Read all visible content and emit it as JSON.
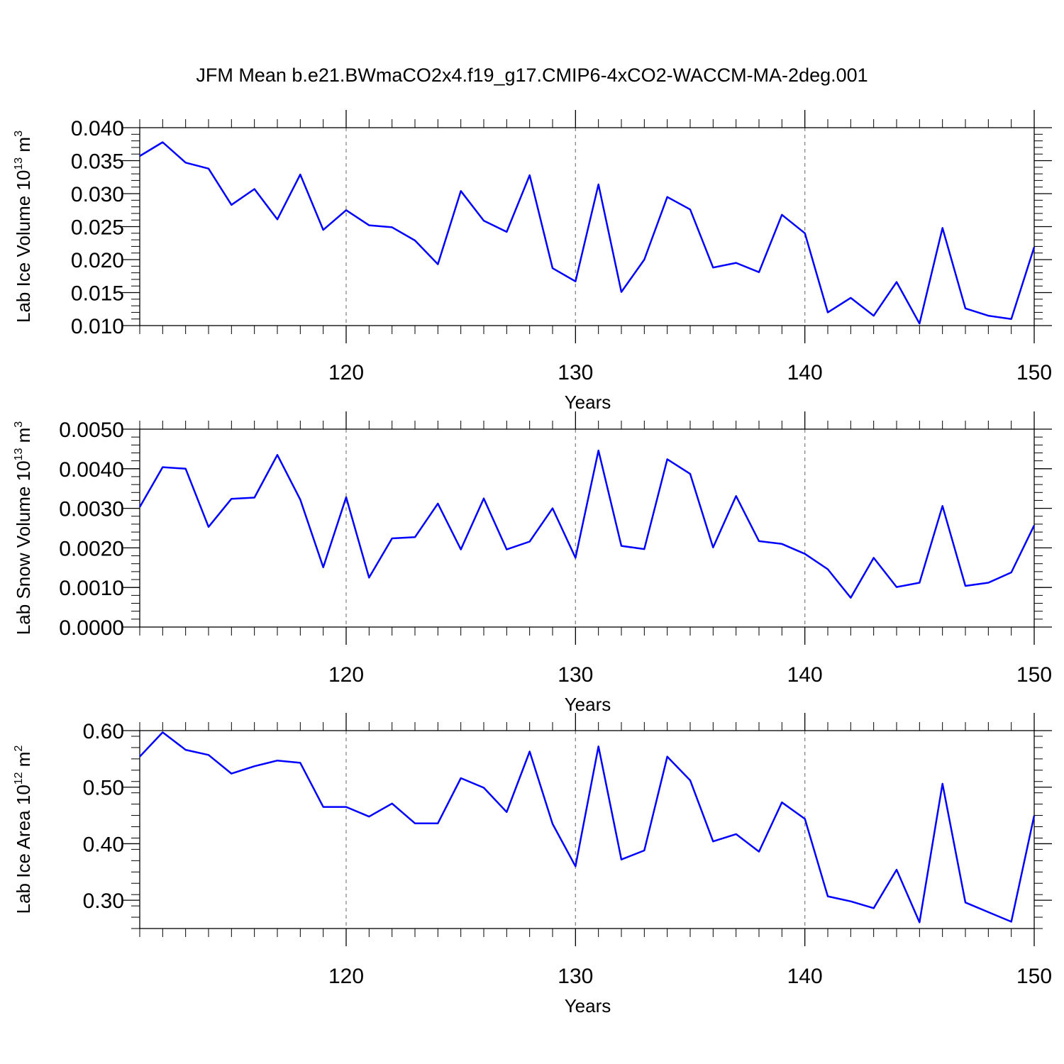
{
  "title": "JFM Mean b.e21.BWmaCO2x4.f19_g17.CMIP6-4xCO2-WACCM-MA-2deg.001",
  "chart_data": [
    {
      "type": "line",
      "xlabel": "Years",
      "ylabel": {
        "base": "Lab Ice Volume 10",
        "exp": "13",
        "unit": " m",
        "unit_exp": "3"
      },
      "xlim": [
        111,
        150
      ],
      "ylim": [
        0.01,
        0.04
      ],
      "xticks": [
        120,
        130,
        140,
        150
      ],
      "xtick_labels": [
        "120",
        "130",
        "140",
        "150"
      ],
      "yticks": [
        0.01,
        0.015,
        0.02,
        0.025,
        0.03,
        0.035,
        0.04
      ],
      "ytick_labels": [
        "0.010",
        "0.015",
        "0.020",
        "0.025",
        "0.030",
        "0.035",
        "0.040"
      ],
      "vgrid": [
        120,
        130,
        140
      ],
      "series": [
        {
          "color": "#0000ff",
          "x": [
            111,
            112,
            113,
            114,
            115,
            116,
            117,
            118,
            119,
            120,
            121,
            122,
            123,
            124,
            125,
            126,
            127,
            128,
            129,
            130,
            131,
            132,
            133,
            134,
            135,
            136,
            137,
            138,
            139,
            140,
            141,
            142,
            143,
            144,
            145,
            146,
            147,
            148,
            149,
            150
          ],
          "y": [
            0.0357,
            0.0378,
            0.0347,
            0.0338,
            0.0283,
            0.0307,
            0.0261,
            0.0329,
            0.0245,
            0.0275,
            0.0252,
            0.0249,
            0.0229,
            0.0193,
            0.0304,
            0.0259,
            0.0242,
            0.0328,
            0.0187,
            0.0167,
            0.0314,
            0.0151,
            0.02,
            0.0295,
            0.0276,
            0.0188,
            0.0195,
            0.0181,
            0.0268,
            0.024,
            0.012,
            0.0142,
            0.0115,
            0.0166,
            0.0103,
            0.0248,
            0.0126,
            0.0115,
            0.011,
            0.0219
          ]
        }
      ]
    },
    {
      "type": "line",
      "xlabel": "Years",
      "ylabel": {
        "base": "Lab Snow Volume 10",
        "exp": "13",
        "unit": " m",
        "unit_exp": "3"
      },
      "xlim": [
        111,
        150
      ],
      "ylim": [
        0.0,
        0.005
      ],
      "xticks": [
        120,
        130,
        140,
        150
      ],
      "xtick_labels": [
        "120",
        "130",
        "140",
        "150"
      ],
      "yticks": [
        0.0,
        0.001,
        0.002,
        0.003,
        0.004,
        0.005
      ],
      "ytick_labels": [
        "0.0000",
        "0.0010",
        "0.0020",
        "0.0030",
        "0.0040",
        "0.0050"
      ],
      "vgrid": [
        120,
        130,
        140
      ],
      "series": [
        {
          "color": "#0000ff",
          "x": [
            111,
            112,
            113,
            114,
            115,
            116,
            117,
            118,
            119,
            120,
            121,
            122,
            123,
            124,
            125,
            126,
            127,
            128,
            129,
            130,
            131,
            132,
            133,
            134,
            135,
            136,
            137,
            138,
            139,
            140,
            141,
            142,
            143,
            144,
            145,
            146,
            147,
            148,
            149,
            150
          ],
          "y": [
            0.00303,
            0.00404,
            0.004,
            0.00253,
            0.00324,
            0.00327,
            0.00435,
            0.00322,
            0.00151,
            0.00328,
            0.00125,
            0.00224,
            0.00227,
            0.00312,
            0.00196,
            0.00325,
            0.00196,
            0.00216,
            0.003,
            0.00175,
            0.00446,
            0.00205,
            0.00197,
            0.00424,
            0.00387,
            0.00201,
            0.00331,
            0.00217,
            0.0021,
            0.00185,
            0.00146,
            0.00074,
            0.00175,
            0.00101,
            0.00112,
            0.00306,
            0.00104,
            0.00112,
            0.00138,
            0.00257
          ]
        }
      ]
    },
    {
      "type": "line",
      "xlabel": "Years",
      "ylabel": {
        "base": "Lab Ice Area 10",
        "exp": "12",
        "unit": " m",
        "unit_exp": "2"
      },
      "xlim": [
        111,
        150
      ],
      "ylim": [
        0.25,
        0.6
      ],
      "xticks": [
        120,
        130,
        140,
        150
      ],
      "xtick_labels": [
        "120",
        "130",
        "140",
        "150"
      ],
      "yticks": [
        0.3,
        0.4,
        0.5,
        0.6
      ],
      "ytick_labels": [
        "0.30",
        "0.40",
        "0.50",
        "0.60"
      ],
      "vgrid": [
        120,
        130,
        140
      ],
      "series": [
        {
          "color": "#0000ff",
          "x": [
            111,
            112,
            113,
            114,
            115,
            116,
            117,
            118,
            119,
            120,
            121,
            122,
            123,
            124,
            125,
            126,
            127,
            128,
            129,
            130,
            131,
            132,
            133,
            134,
            135,
            136,
            137,
            138,
            139,
            140,
            141,
            142,
            143,
            144,
            145,
            146,
            147,
            148,
            149,
            150
          ],
          "y": [
            0.554,
            0.597,
            0.566,
            0.557,
            0.524,
            0.537,
            0.547,
            0.543,
            0.465,
            0.465,
            0.448,
            0.471,
            0.436,
            0.436,
            0.516,
            0.499,
            0.456,
            0.563,
            0.435,
            0.36,
            0.572,
            0.372,
            0.388,
            0.554,
            0.512,
            0.404,
            0.417,
            0.386,
            0.473,
            0.444,
            0.307,
            0.298,
            0.286,
            0.354,
            0.261,
            0.506,
            0.296,
            0.279,
            0.262,
            0.45
          ]
        }
      ]
    }
  ]
}
